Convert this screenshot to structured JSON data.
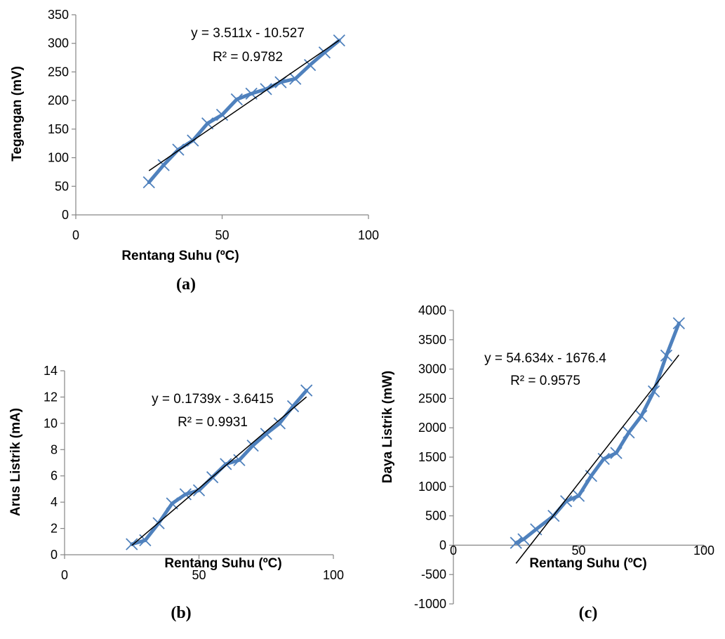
{
  "chart_data": [
    {
      "type": "line",
      "caption": "(a)",
      "xlabel": "Rentang Suhu (ºC)",
      "ylabel": "Tegangan (mV)",
      "xlim": [
        0,
        100
      ],
      "ylim": [
        0,
        350
      ],
      "xticks": [
        0,
        50,
        100
      ],
      "yticks": [
        0,
        50,
        100,
        150,
        200,
        250,
        300,
        350
      ],
      "marker": "x",
      "series_color": "#4f81bd",
      "trendline": {
        "slope": 3.511,
        "intercept": -10.527,
        "equation": "y = 3.511x - 10.527",
        "r2": "R² = 0.9782"
      },
      "series": [
        {
          "x": [
            25,
            30,
            35,
            40,
            45,
            50,
            55,
            60,
            65,
            70,
            75,
            80,
            85,
            90
          ],
          "y": [
            57,
            87,
            114,
            130,
            160,
            175,
            202,
            212,
            220,
            232,
            238,
            262,
            284,
            305
          ]
        }
      ]
    },
    {
      "type": "line",
      "caption": "(b)",
      "xlabel": "Rentang Suhu (ºC)",
      "ylabel": "Arus Listrik (mA)",
      "xlim": [
        0,
        100
      ],
      "ylim": [
        0,
        14
      ],
      "xticks": [
        0,
        50,
        100
      ],
      "yticks": [
        0,
        2,
        4,
        6,
        8,
        10,
        12,
        14
      ],
      "marker": "x",
      "series_color": "#4f81bd",
      "trendline": {
        "slope": 0.1739,
        "intercept": -3.6415,
        "equation": "y = 0.1739x - 3.6415",
        "r2": "R² = 0.9931"
      },
      "series": [
        {
          "x": [
            25,
            30,
            35,
            40,
            45,
            50,
            55,
            60,
            65,
            70,
            75,
            80,
            85,
            90
          ],
          "y": [
            0.8,
            1.1,
            2.4,
            3.9,
            4.6,
            4.9,
            5.9,
            6.9,
            7.2,
            8.3,
            9.2,
            10.0,
            11.3,
            12.5
          ]
        }
      ]
    },
    {
      "type": "line",
      "caption": "(c)",
      "xlabel": "Rentang Suhu (ºC)",
      "ylabel": "Daya Listrik (mW)",
      "xlim": [
        0,
        100
      ],
      "ylim": [
        -1000,
        4000
      ],
      "xticks": [
        0,
        50,
        100
      ],
      "yticks": [
        -1000,
        -500,
        0,
        500,
        1000,
        1500,
        2000,
        2500,
        3000,
        3500,
        4000
      ],
      "marker": "x",
      "series_color": "#4f81bd",
      "trendline": {
        "slope": 54.634,
        "intercept": -1676.4,
        "equation": "y = 54.634x - 1676.4",
        "r2": "R² = 0.9575"
      },
      "series": [
        {
          "x": [
            25,
            28,
            33,
            40,
            45,
            50,
            55,
            60,
            65,
            70,
            75,
            80,
            85,
            90
          ],
          "y": [
            40,
            100,
            270,
            500,
            750,
            840,
            1180,
            1470,
            1570,
            1920,
            2200,
            2620,
            3230,
            3780
          ]
        }
      ]
    }
  ]
}
